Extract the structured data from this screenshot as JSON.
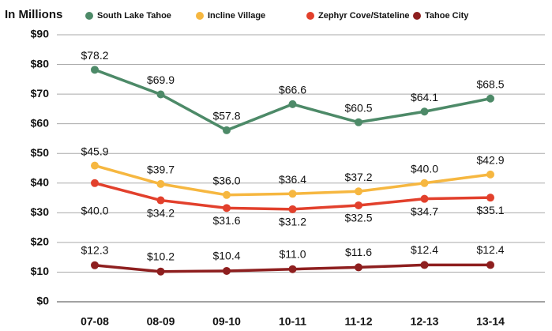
{
  "chart_data": {
    "type": "line",
    "y_axis_label": "In Millions",
    "categories": [
      "07-08",
      "08-09",
      "09-10",
      "10-11",
      "11-12",
      "12-13",
      "13-14"
    ],
    "series": [
      {
        "name": "South Lake Tahoe",
        "color": "#4d8a68",
        "values": [
          78.2,
          69.9,
          57.8,
          66.6,
          60.5,
          64.1,
          68.5
        ],
        "value_labels": [
          "$78.2",
          "$69.9",
          "$57.8",
          "$66.6",
          "$60.5",
          "$64.1",
          "$68.5"
        ]
      },
      {
        "name": "Incline Village",
        "color": "#f6b740",
        "values": [
          45.9,
          39.7,
          36.0,
          36.4,
          37.2,
          40.0,
          42.9
        ],
        "value_labels": [
          "$45.9",
          "$39.7",
          "$36.0",
          "$36.4",
          "$37.2",
          "$40.0",
          "$42.9"
        ]
      },
      {
        "name": "Zephyr Cove/Stateline",
        "color": "#e2402c",
        "values": [
          40.0,
          34.2,
          31.6,
          31.2,
          32.5,
          34.7,
          35.1
        ],
        "value_labels": [
          "$40.0",
          "$34.2",
          "$31.6",
          "$31.2",
          "$32.5",
          "$34.7",
          "$35.1"
        ]
      },
      {
        "name": "Tahoe City",
        "color": "#8e1f1f",
        "values": [
          12.3,
          10.2,
          10.4,
          11.0,
          11.6,
          12.4,
          12.4
        ],
        "value_labels": [
          "$12.3",
          "$10.2",
          "$10.4",
          "$11.0",
          "$11.6",
          "$12.4",
          "$12.4"
        ]
      }
    ],
    "ylim": [
      0,
      90
    ],
    "yticks": [
      {
        "value": 0,
        "label": "$0"
      },
      {
        "value": 10,
        "label": "$10"
      },
      {
        "value": 20,
        "label": "$20"
      },
      {
        "value": 30,
        "label": "$30"
      },
      {
        "value": 40,
        "label": "$40"
      },
      {
        "value": 50,
        "label": "$50"
      },
      {
        "value": 60,
        "label": "$60"
      },
      {
        "value": 70,
        "label": "$70"
      },
      {
        "value": 80,
        "label": "$80"
      },
      {
        "value": 90,
        "label": "$90"
      }
    ],
    "grid": true
  }
}
